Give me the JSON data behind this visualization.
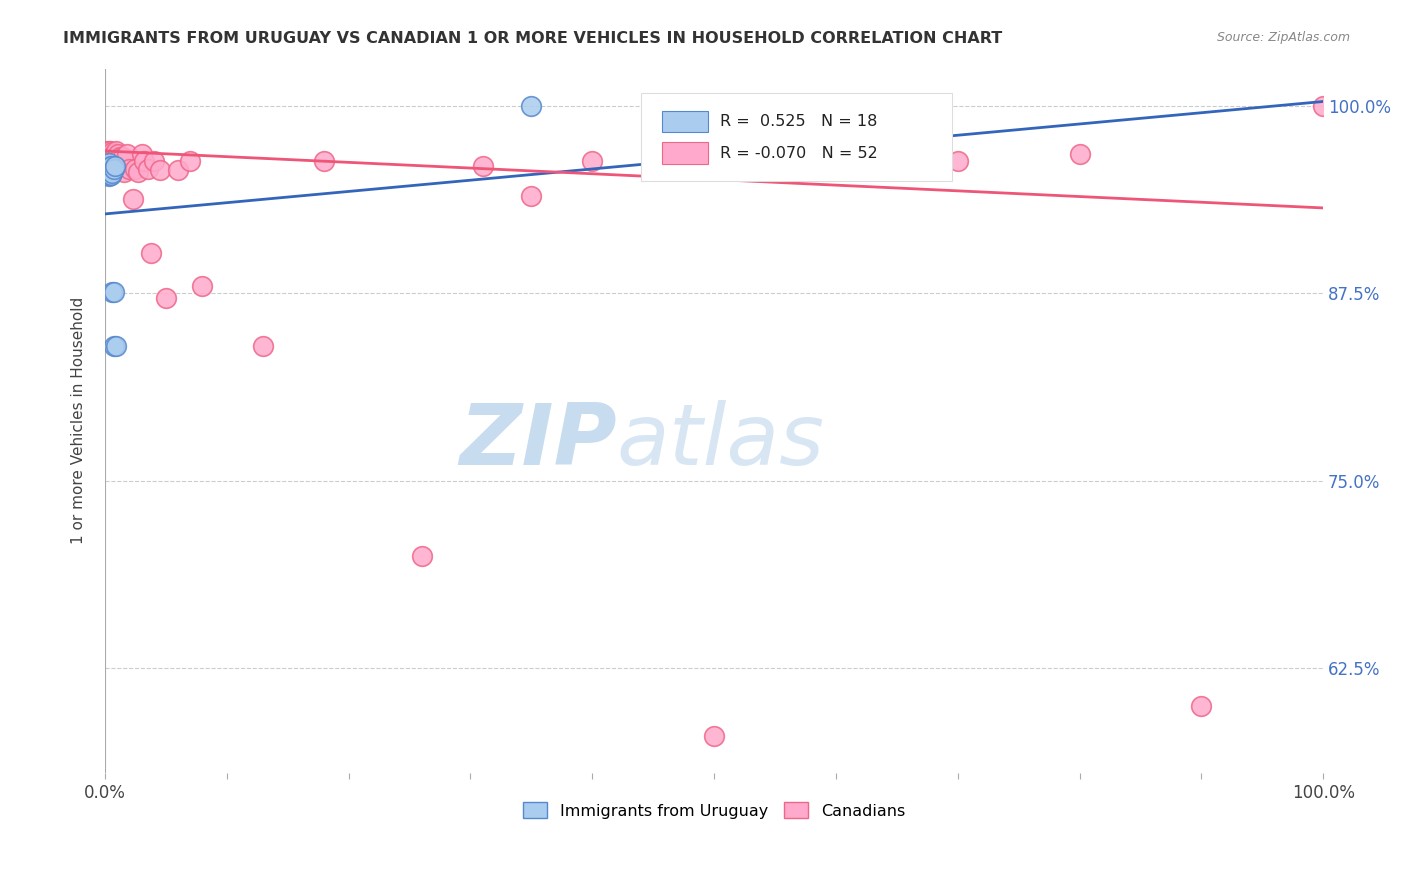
{
  "title": "IMMIGRANTS FROM URUGUAY VS CANADIAN 1 OR MORE VEHICLES IN HOUSEHOLD CORRELATION CHART",
  "source": "Source: ZipAtlas.com",
  "ylabel": "1 or more Vehicles in Household",
  "ytick_labels": [
    "100.0%",
    "87.5%",
    "75.0%",
    "62.5%"
  ],
  "ytick_values": [
    1.0,
    0.875,
    0.75,
    0.625
  ],
  "xmin": 0.0,
  "xmax": 1.0,
  "ymin": 0.555,
  "ymax": 1.025,
  "blue_R": 0.525,
  "blue_N": 18,
  "pink_R": -0.07,
  "pink_N": 52,
  "blue_color": "#AACCEE",
  "pink_color": "#FFAACC",
  "blue_edge_color": "#5588CC",
  "pink_edge_color": "#EE6688",
  "blue_line_color": "#3366BB",
  "pink_line_color": "#EE5577",
  "watermark_zip_color": "#C8DCF0",
  "watermark_atlas_color": "#C8DCF0",
  "background_color": "#FFFFFF",
  "grid_color": "#CCCCCC",
  "blue_scatter_x": [
    0.001,
    0.002,
    0.002,
    0.003,
    0.003,
    0.003,
    0.004,
    0.004,
    0.005,
    0.005,
    0.006,
    0.006,
    0.007,
    0.007,
    0.007,
    0.008,
    0.009,
    0.35
  ],
  "blue_scatter_y": [
    0.958,
    0.955,
    0.96,
    0.953,
    0.957,
    0.962,
    0.954,
    0.959,
    0.954,
    0.96,
    0.955,
    0.876,
    0.876,
    0.84,
    0.958,
    0.96,
    0.84,
    1.0
  ],
  "pink_scatter_x": [
    0.001,
    0.002,
    0.003,
    0.003,
    0.004,
    0.004,
    0.005,
    0.005,
    0.006,
    0.006,
    0.007,
    0.007,
    0.008,
    0.008,
    0.009,
    0.009,
    0.01,
    0.01,
    0.011,
    0.011,
    0.012,
    0.013,
    0.015,
    0.016,
    0.018,
    0.02,
    0.023,
    0.025,
    0.027,
    0.03,
    0.032,
    0.035,
    0.038,
    0.04,
    0.045,
    0.05,
    0.06,
    0.07,
    0.08,
    0.13,
    0.18,
    0.26,
    0.31,
    0.35,
    0.4,
    0.5,
    0.55,
    0.6,
    0.7,
    0.8,
    0.9,
    1.0
  ],
  "pink_scatter_y": [
    0.97,
    0.965,
    0.965,
    0.97,
    0.965,
    0.97,
    0.962,
    0.968,
    0.964,
    0.969,
    0.962,
    0.968,
    0.963,
    0.968,
    0.965,
    0.97,
    0.96,
    0.966,
    0.962,
    0.968,
    0.966,
    0.96,
    0.966,
    0.956,
    0.968,
    0.958,
    0.938,
    0.958,
    0.956,
    0.968,
    0.963,
    0.958,
    0.902,
    0.963,
    0.957,
    0.872,
    0.957,
    0.963,
    0.88,
    0.84,
    0.963,
    0.7,
    0.96,
    0.94,
    0.963,
    0.58,
    0.963,
    0.968,
    0.963,
    0.968,
    0.6,
    1.0
  ],
  "blue_trendline_x": [
    0.0,
    1.0
  ],
  "blue_trendline_y_start": 0.928,
  "blue_trendline_y_end": 1.003,
  "pink_trendline_y_start": 0.97,
  "pink_trendline_y_end": 0.932
}
